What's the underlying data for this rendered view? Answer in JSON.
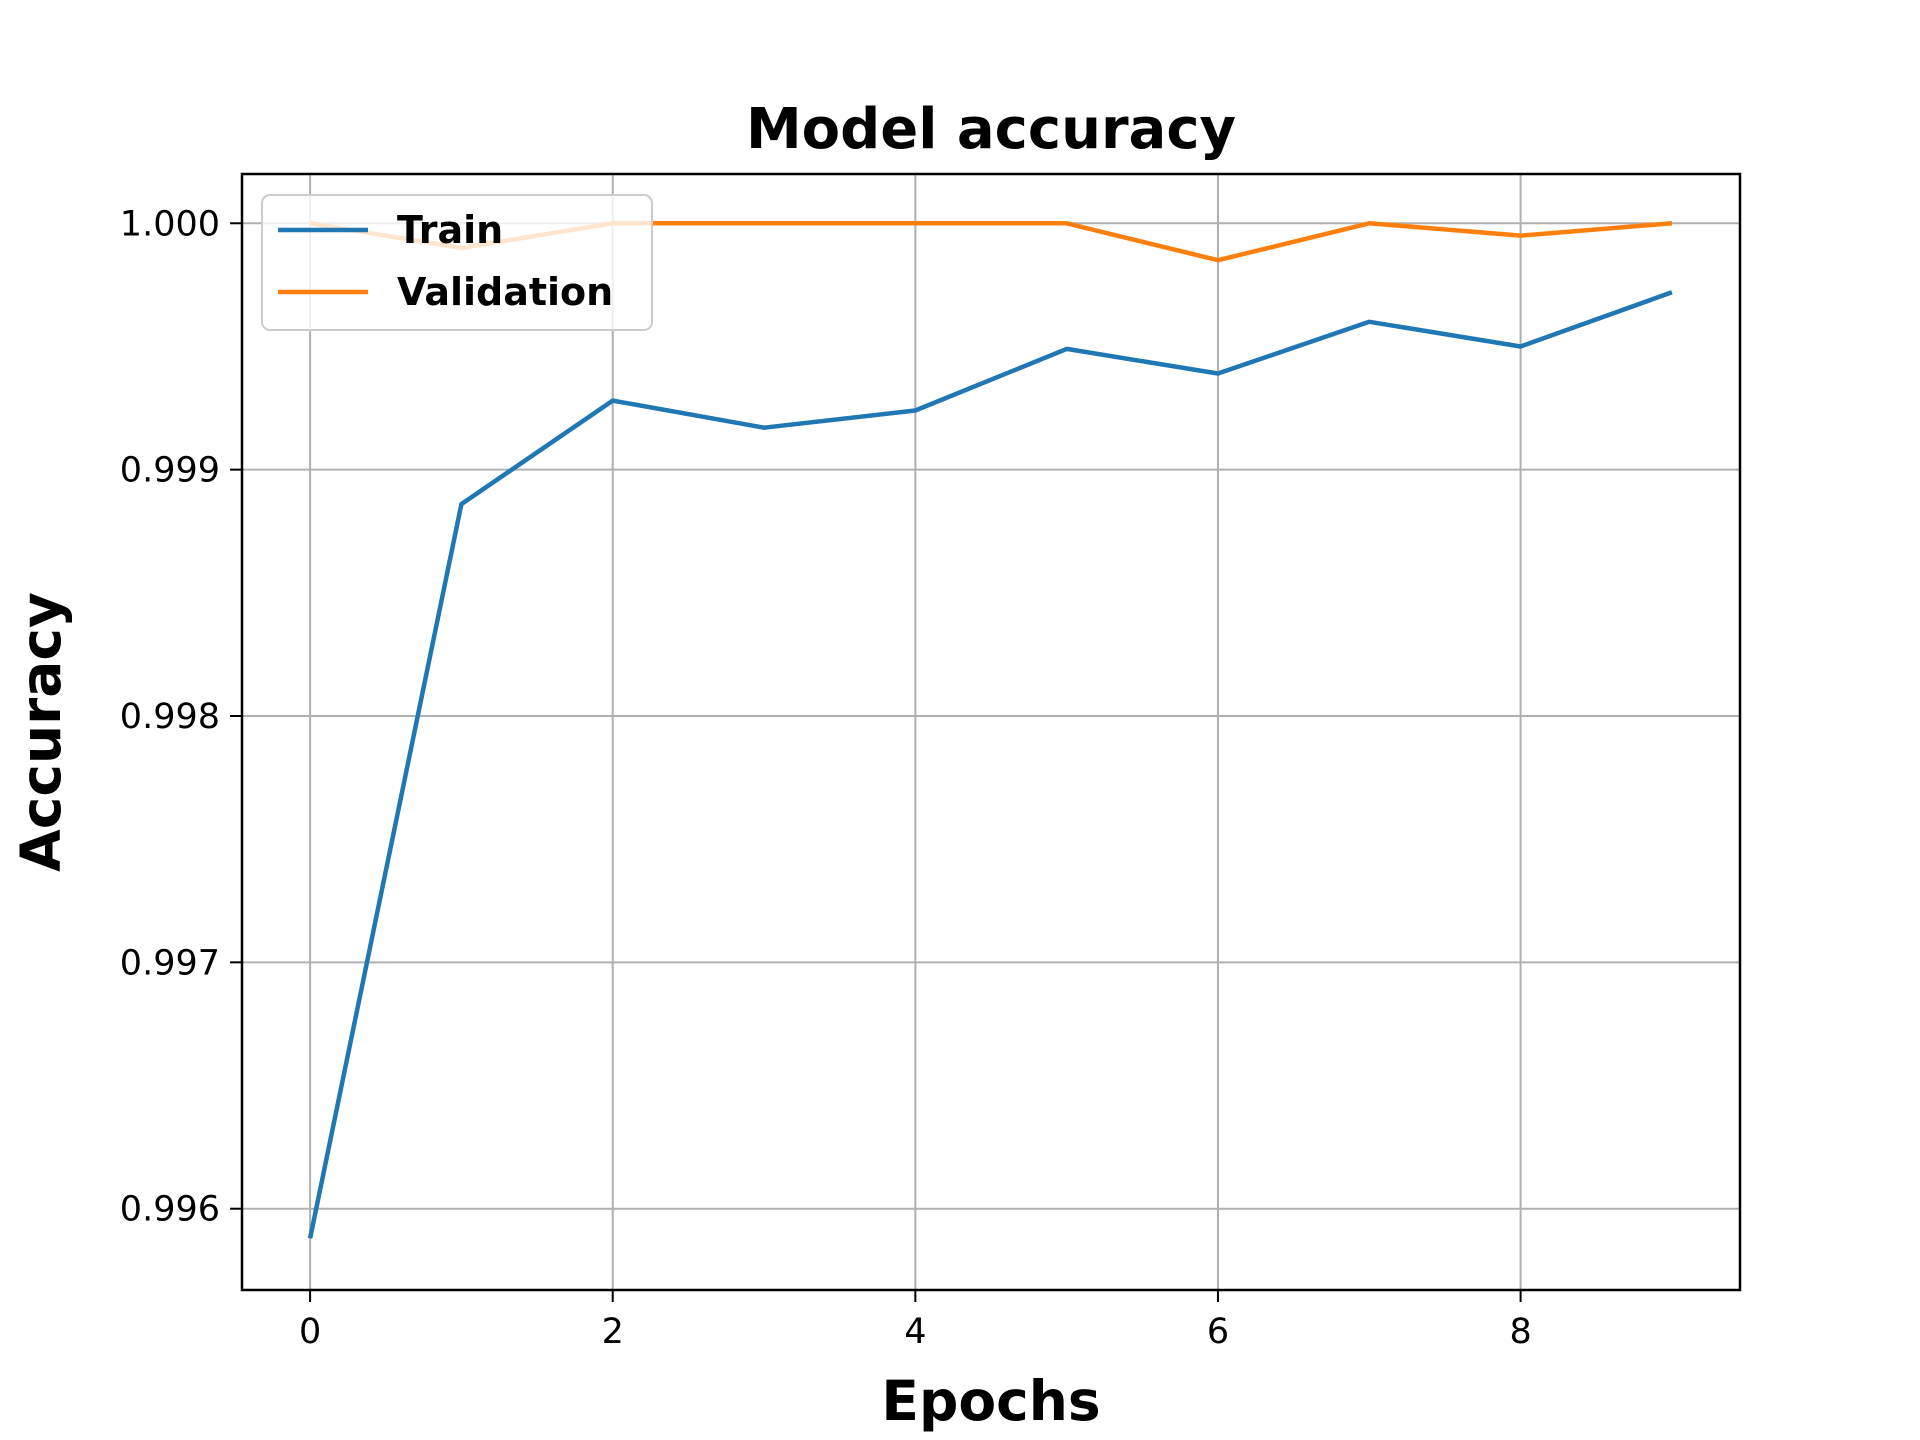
{
  "chart_data": {
    "type": "line",
    "title": "Model accuracy",
    "xlabel": "Epochs",
    "ylabel": "Accuracy",
    "x": [
      0,
      1,
      2,
      3,
      4,
      5,
      6,
      7,
      8,
      9
    ],
    "xlim": [
      -0.45,
      9.45
    ],
    "ylim": [
      0.99567,
      1.0002
    ],
    "x_ticks": [
      0,
      2,
      4,
      6,
      8
    ],
    "x_tick_labels": [
      "0",
      "2",
      "4",
      "6",
      "8"
    ],
    "y_ticks": [
      0.996,
      0.997,
      0.998,
      0.999,
      1.0
    ],
    "y_tick_labels": [
      "0.996",
      "0.997",
      "0.998",
      "0.999",
      "1.000"
    ],
    "grid": true,
    "legend_position": "upper-left",
    "series": [
      {
        "name": "Train",
        "color": "#1f77b4",
        "values": [
          0.99588,
          0.99886,
          0.99928,
          0.99917,
          0.99924,
          0.99949,
          0.99939,
          0.9996,
          0.9995,
          0.99972
        ]
      },
      {
        "name": "Validation",
        "color": "#ff7f0e",
        "values": [
          1.0,
          0.9999,
          1.0,
          1.0,
          1.0,
          1.0,
          0.99985,
          1.0,
          0.99995,
          1.0
        ]
      }
    ]
  }
}
